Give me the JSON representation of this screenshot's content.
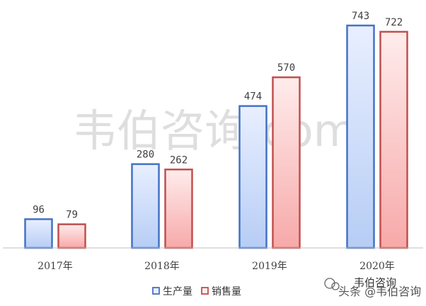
{
  "chart_data": {
    "type": "bar",
    "categories": [
      "2017年",
      "2018年",
      "2019年",
      "2020年"
    ],
    "series": [
      {
        "name": "生产量",
        "values": [
          96,
          280,
          474,
          743
        ],
        "color": "#4472c4",
        "fill_top": "#e8efff",
        "fill_bottom": "#b7cdf5"
      },
      {
        "name": "销售量",
        "values": [
          79,
          262,
          570,
          722
        ],
        "color": "#c0504d",
        "fill_top": "#ffecec",
        "fill_bottom": "#f7a9a9"
      }
    ],
    "ylim": [
      0,
      780
    ],
    "grid": false,
    "legend": "bottom",
    "title": "",
    "xlabel": "",
    "ylabel": ""
  },
  "watermark": {
    "center_text": "韦伯咨询.com",
    "corner_title": "韦伯咨询",
    "corner_credit": "头条 @韦伯咨询"
  }
}
